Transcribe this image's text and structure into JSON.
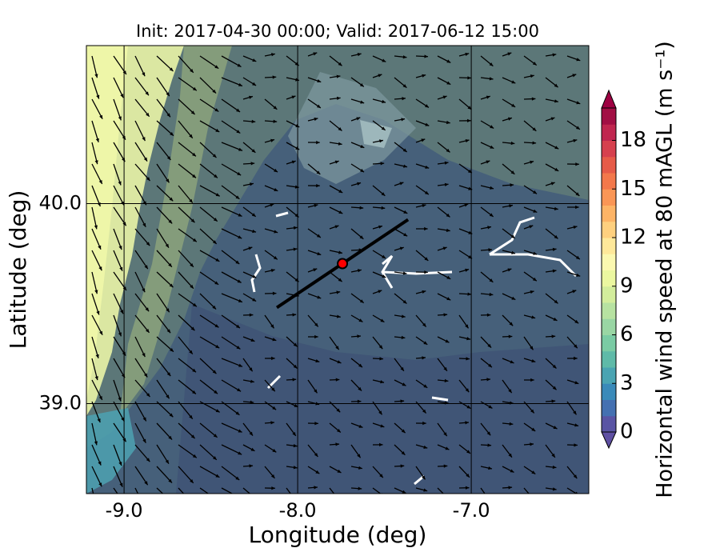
{
  "chart_data": {
    "type": "map",
    "title": "Init: 2017-04-30 00:00; Valid: 2017-06-12 15:00",
    "xlabel": "Longitude (deg)",
    "ylabel": "Latitude (deg)",
    "xlim": [
      -9.217,
      -6.323
    ],
    "ylim": [
      38.55,
      40.79
    ],
    "xticks": [
      {
        "value": -9,
        "label": "-9.0"
      },
      {
        "value": -8,
        "label": "-8.0"
      },
      {
        "value": -7,
        "label": "-7.0"
      }
    ],
    "yticks": [
      {
        "value": 39,
        "label": "39.0"
      },
      {
        "value": 40,
        "label": "40.0"
      }
    ],
    "grid": true,
    "transect": {
      "x": [
        -8.12,
        -7.364
      ],
      "y": [
        39.48,
        39.92
      ],
      "color": "#000000"
    },
    "marker": {
      "x": -7.742,
      "y": 39.7,
      "color": "#ff0000"
    },
    "colorbar": {
      "label": "Horizontal wind speed at 80 mAGL (m s⁻¹)",
      "clim": [
        0,
        20
      ],
      "ticks": [
        0,
        3,
        6,
        9,
        12,
        15,
        18
      ],
      "colors": [
        "#5954a4",
        "#4470b1",
        "#3a8ab9",
        "#4aa4b2",
        "#5fbaa8",
        "#7acba4",
        "#99d6a4",
        "#b7e2a1",
        "#d3ed9c",
        "#ebf7a0",
        "#fbf8b0",
        "#fee89a",
        "#fed07f",
        "#fdb466",
        "#fa9656",
        "#f3784b",
        "#e65b48",
        "#d6404e",
        "#c0264f",
        "#a20f44"
      ],
      "under": "#5e4fa2",
      "over": "#9e0142"
    }
  }
}
